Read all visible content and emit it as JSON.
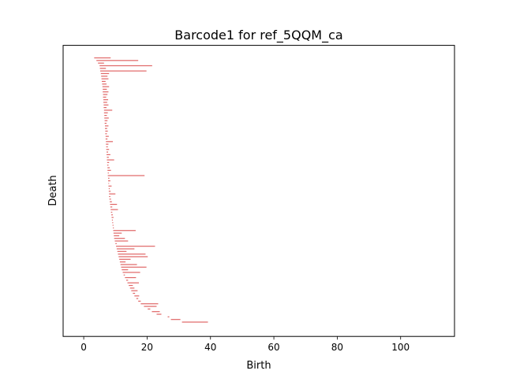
{
  "chart_data": {
    "type": "barcode",
    "title": "Barcode1 for ref_5QQM_ca",
    "xlabel": "Birth",
    "ylabel": "Death",
    "xlim": [
      -6.5,
      117
    ],
    "x_ticks": [
      "0",
      "20",
      "40",
      "60",
      "80",
      "100"
    ],
    "x_tick_values": [
      0,
      20,
      40,
      60,
      80,
      100
    ],
    "bar_color": "#e06666",
    "y_ticks_shown": false,
    "grid": false,
    "bars": [
      {
        "birth": 3.3,
        "death": 8.5
      },
      {
        "birth": 4.0,
        "death": 17.2
      },
      {
        "birth": 4.5,
        "death": 6.4
      },
      {
        "birth": 5.0,
        "death": 21.6
      },
      {
        "birth": 5.1,
        "death": 7.0
      },
      {
        "birth": 5.2,
        "death": 19.8
      },
      {
        "birth": 5.4,
        "death": 8.0
      },
      {
        "birth": 5.5,
        "death": 7.5
      },
      {
        "birth": 5.6,
        "death": 7.8
      },
      {
        "birth": 5.7,
        "death": 6.9
      },
      {
        "birth": 5.8,
        "death": 7.2
      },
      {
        "birth": 5.9,
        "death": 8.0
      },
      {
        "birth": 6.0,
        "death": 7.3
      },
      {
        "birth": 6.0,
        "death": 7.8
      },
      {
        "birth": 6.1,
        "death": 7.5
      },
      {
        "birth": 6.1,
        "death": 7.1
      },
      {
        "birth": 6.2,
        "death": 7.7
      },
      {
        "birth": 6.2,
        "death": 7.4
      },
      {
        "birth": 6.3,
        "death": 7.8
      },
      {
        "birth": 6.3,
        "death": 7.2
      },
      {
        "birth": 6.4,
        "death": 9.0
      },
      {
        "birth": 6.4,
        "death": 7.6
      },
      {
        "birth": 6.5,
        "death": 7.3
      },
      {
        "birth": 6.5,
        "death": 7.9
      },
      {
        "birth": 6.6,
        "death": 7.5
      },
      {
        "birth": 6.6,
        "death": 7.2
      },
      {
        "birth": 6.7,
        "death": 7.8
      },
      {
        "birth": 6.7,
        "death": 7.4
      },
      {
        "birth": 6.8,
        "death": 7.6
      },
      {
        "birth": 6.8,
        "death": 7.3
      },
      {
        "birth": 6.9,
        "death": 7.9
      },
      {
        "birth": 6.9,
        "death": 7.5
      },
      {
        "birth": 7.0,
        "death": 9.2
      },
      {
        "birth": 7.0,
        "death": 7.8
      },
      {
        "birth": 7.1,
        "death": 7.6
      },
      {
        "birth": 7.1,
        "death": 8.0
      },
      {
        "birth": 7.2,
        "death": 7.7
      },
      {
        "birth": 7.2,
        "death": 8.4
      },
      {
        "birth": 7.3,
        "death": 7.9
      },
      {
        "birth": 7.3,
        "death": 9.6
      },
      {
        "birth": 7.4,
        "death": 8.0
      },
      {
        "birth": 7.4,
        "death": 7.8
      },
      {
        "birth": 7.5,
        "death": 8.2
      },
      {
        "birth": 7.5,
        "death": 8.6
      },
      {
        "birth": 7.6,
        "death": 7.9
      },
      {
        "birth": 7.6,
        "death": 19.2
      },
      {
        "birth": 7.7,
        "death": 8.1
      },
      {
        "birth": 7.7,
        "death": 8.4
      },
      {
        "birth": 7.8,
        "death": 8.0
      },
      {
        "birth": 7.8,
        "death": 8.8
      },
      {
        "birth": 7.9,
        "death": 8.2
      },
      {
        "birth": 7.9,
        "death": 8.5
      },
      {
        "birth": 8.0,
        "death": 10.0
      },
      {
        "birth": 8.0,
        "death": 8.4
      },
      {
        "birth": 8.1,
        "death": 8.6
      },
      {
        "birth": 8.2,
        "death": 8.9
      },
      {
        "birth": 8.3,
        "death": 10.5
      },
      {
        "birth": 8.4,
        "death": 9.0
      },
      {
        "birth": 8.5,
        "death": 10.8
      },
      {
        "birth": 8.6,
        "death": 9.0
      },
      {
        "birth": 8.7,
        "death": 9.2
      },
      {
        "birth": 8.8,
        "death": 9.4
      },
      {
        "birth": 8.9,
        "death": 9.2
      },
      {
        "birth": 9.0,
        "death": 9.3
      },
      {
        "birth": 9.1,
        "death": 9.4
      },
      {
        "birth": 9.2,
        "death": 9.5
      },
      {
        "birth": 9.3,
        "death": 16.4
      },
      {
        "birth": 9.4,
        "death": 12.0
      },
      {
        "birth": 9.5,
        "death": 11.2
      },
      {
        "birth": 9.6,
        "death": 13.0
      },
      {
        "birth": 9.8,
        "death": 14.0
      },
      {
        "birth": 10.0,
        "death": 10.4
      },
      {
        "birth": 10.2,
        "death": 22.5
      },
      {
        "birth": 10.4,
        "death": 16.0
      },
      {
        "birth": 10.6,
        "death": 13.5
      },
      {
        "birth": 10.8,
        "death": 19.5
      },
      {
        "birth": 11.0,
        "death": 20.2
      },
      {
        "birth": 11.2,
        "death": 14.8
      },
      {
        "birth": 11.4,
        "death": 13.2
      },
      {
        "birth": 11.6,
        "death": 16.8
      },
      {
        "birth": 11.8,
        "death": 19.8
      },
      {
        "birth": 12.0,
        "death": 14.0
      },
      {
        "birth": 12.3,
        "death": 17.8
      },
      {
        "birth": 12.6,
        "death": 13.0
      },
      {
        "birth": 13.0,
        "death": 16.5
      },
      {
        "birth": 13.4,
        "death": 14.0
      },
      {
        "birth": 13.8,
        "death": 17.4
      },
      {
        "birth": 14.2,
        "death": 15.5
      },
      {
        "birth": 14.6,
        "death": 16.0
      },
      {
        "birth": 15.0,
        "death": 17.0
      },
      {
        "birth": 15.5,
        "death": 16.2
      },
      {
        "birth": 16.0,
        "death": 17.5
      },
      {
        "birth": 16.6,
        "death": 17.2
      },
      {
        "birth": 17.2,
        "death": 18.0
      },
      {
        "birth": 18.0,
        "death": 23.5
      },
      {
        "birth": 19.0,
        "death": 23.0
      },
      {
        "birth": 20.2,
        "death": 21.0
      },
      {
        "birth": 21.5,
        "death": 24.0
      },
      {
        "birth": 23.0,
        "death": 24.5
      },
      {
        "birth": 26.5,
        "death": 27.0
      },
      {
        "birth": 27.5,
        "death": 30.5
      },
      {
        "birth": 31.0,
        "death": 39.2
      }
    ]
  }
}
